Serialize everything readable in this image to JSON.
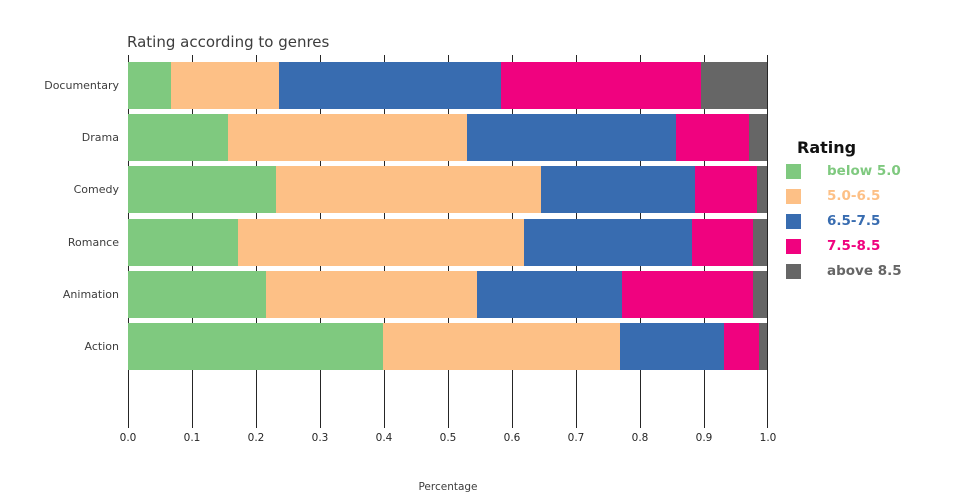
{
  "chart_data": {
    "type": "bar",
    "orientation": "horizontal",
    "stacked": true,
    "title": "Rating according to genres",
    "xlabel": "Percentage",
    "ylabel": "",
    "xlim": [
      0,
      1
    ],
    "grid": true,
    "x_ticks": [
      0,
      0.1,
      0.2,
      0.3,
      0.4,
      0.5,
      0.6,
      0.7,
      0.8,
      0.9,
      1.0
    ],
    "x_tick_labels": [
      "0.0",
      "0.1",
      "0.2",
      "0.3",
      "0.4",
      "0.5",
      "0.6",
      "0.7",
      "0.8",
      "0.9",
      "1.0"
    ],
    "categories": [
      "Documentary",
      "Drama",
      "Comedy",
      "Romance",
      "Animation",
      "Action"
    ],
    "series": [
      {
        "name": "below 5.0",
        "color": "#7fc97f",
        "values": [
          0.067,
          0.156,
          0.232,
          0.172,
          0.215,
          0.398
        ]
      },
      {
        "name": "5.0-6.5",
        "color": "#fdc086",
        "values": [
          0.169,
          0.373,
          0.414,
          0.447,
          0.33,
          0.371
        ]
      },
      {
        "name": "6.5-7.5",
        "color": "#386cb0",
        "values": [
          0.347,
          0.328,
          0.24,
          0.262,
          0.227,
          0.163
        ]
      },
      {
        "name": "7.5-8.5",
        "color": "#f0027f",
        "values": [
          0.312,
          0.113,
          0.097,
          0.096,
          0.205,
          0.054
        ]
      },
      {
        "name": "above 8.5",
        "color": "#666666",
        "values": [
          0.105,
          0.03,
          0.017,
          0.023,
          0.023,
          0.014
        ]
      }
    ],
    "legend": {
      "title": "Rating",
      "position": "right"
    }
  }
}
